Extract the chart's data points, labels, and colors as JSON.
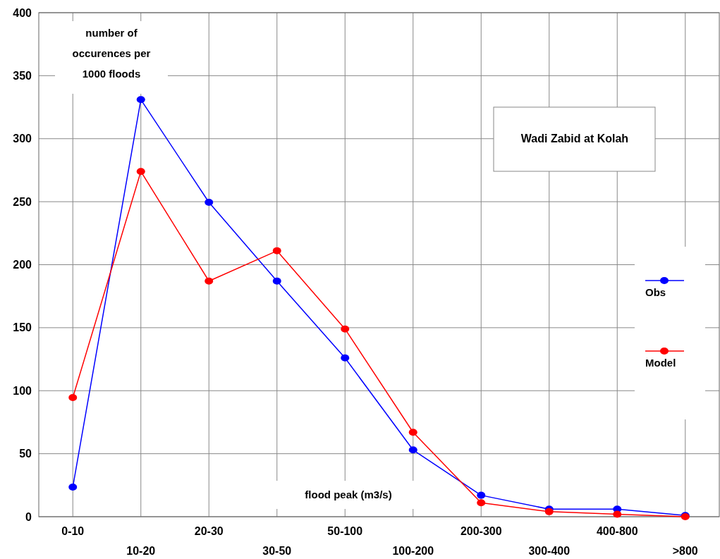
{
  "chart_data": {
    "type": "line",
    "title": "Wadi Zabid at Kolah",
    "xlabel": "flood peak  (m3/s)",
    "ylabel": "number of occurences per 1000 floods",
    "categories": [
      "0-10",
      "10-20",
      "20-30",
      "30-50",
      "50-100",
      "100-200",
      "200-300",
      "300-400",
      "400-800",
      ">800"
    ],
    "series": [
      {
        "name": "Obs",
        "color": "#0000ff",
        "values": [
          23.5,
          331,
          249.5,
          187,
          126,
          53,
          17,
          6,
          6,
          1
        ]
      },
      {
        "name": "Model",
        "color": "#ff0000",
        "values": [
          94.5,
          274,
          187,
          211,
          149,
          67,
          11,
          4,
          2,
          0
        ]
      }
    ],
    "ylim": [
      0,
      400
    ],
    "yticks": [
      0,
      50,
      100,
      150,
      200,
      250,
      300,
      350,
      400
    ],
    "grid": true,
    "legend": "right",
    "marker": "circle",
    "line_style": "solid"
  }
}
